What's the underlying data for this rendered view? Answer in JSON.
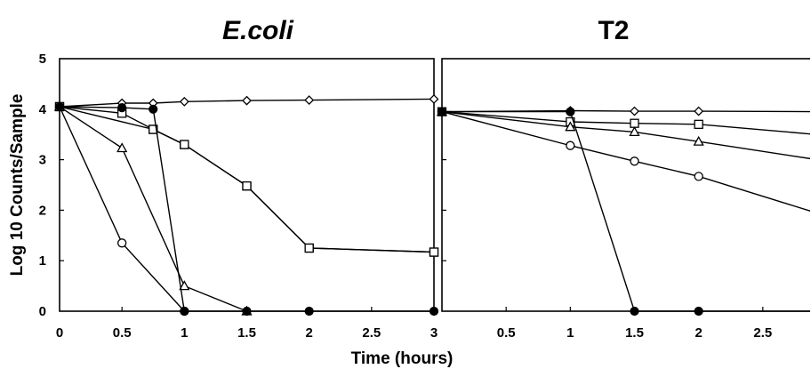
{
  "chart_data": [
    {
      "type": "line",
      "title": "E.coli",
      "xlabel": "Time (hours)",
      "ylabel": "Log 10 Counts/Sample",
      "xlim": [
        0,
        3
      ],
      "ylim": [
        0,
        5
      ],
      "xticks": [
        "0",
        "0.5",
        "1",
        "1.5",
        "2",
        "2.5",
        "3"
      ],
      "yticks": [
        "0",
        "1",
        "2",
        "3",
        "4",
        "5"
      ],
      "grid": false,
      "series": [
        {
          "marker": "diamond-open",
          "x": [
            0,
            0.5,
            0.75,
            1,
            1.5,
            2,
            3
          ],
          "y": [
            4.05,
            4.12,
            4.12,
            4.15,
            4.17,
            4.18,
            4.2
          ]
        },
        {
          "marker": "square-open",
          "x": [
            0,
            0.75,
            1,
            1.5,
            2,
            3
          ],
          "y": [
            4.05,
            3.6,
            3.3,
            2.48,
            1.25,
            1.17
          ]
        },
        {
          "marker": "triangle-open",
          "x": [
            0,
            0.5,
            1,
            1.5
          ],
          "y": [
            4.05,
            3.23,
            0.5,
            0
          ]
        },
        {
          "marker": "circle-open",
          "x": [
            0,
            0.5,
            1
          ],
          "y": [
            4.05,
            1.35,
            0
          ]
        },
        {
          "marker": "square-open",
          "x": [
            0,
            0.5,
            0.75,
            1,
            1.5,
            2,
            3
          ],
          "y": [
            4.05,
            3.92,
            3.6,
            3.3,
            2.48,
            1.25,
            1.17
          ]
        },
        {
          "marker": "circle-filled",
          "x": [
            0,
            0.5,
            0.75,
            1,
            1.5,
            2,
            3
          ],
          "y": [
            4.05,
            4.03,
            4.0,
            0,
            0,
            0,
            0
          ]
        }
      ]
    },
    {
      "type": "line",
      "title": "T2",
      "xlabel": "Time (hours)",
      "xlim": [
        0,
        3
      ],
      "ylim": [
        0,
        5
      ],
      "xticks": [
        "0.5",
        "1",
        "1.5",
        "2",
        "2.5",
        "3"
      ],
      "grid": false,
      "series": [
        {
          "marker": "diamond-open",
          "x": [
            0,
            1,
            1.5,
            2,
            3
          ],
          "y": [
            3.95,
            3.97,
            3.96,
            3.96,
            3.95
          ]
        },
        {
          "marker": "square-open",
          "x": [
            0,
            1,
            1.5,
            2,
            3
          ],
          "y": [
            3.95,
            3.75,
            3.72,
            3.7,
            3.48
          ]
        },
        {
          "marker": "triangle-open",
          "x": [
            0,
            1,
            1.5,
            2,
            3
          ],
          "y": [
            3.95,
            3.65,
            3.55,
            3.36,
            2.97
          ]
        },
        {
          "marker": "circle-open",
          "x": [
            0,
            1,
            1.5,
            2,
            3
          ],
          "y": [
            3.95,
            3.28,
            2.97,
            2.67,
            1.88
          ]
        },
        {
          "marker": "circle-filled",
          "x": [
            0,
            1,
            1.5,
            2,
            3
          ],
          "y": [
            3.95,
            3.95,
            0,
            0,
            0
          ]
        }
      ]
    }
  ]
}
